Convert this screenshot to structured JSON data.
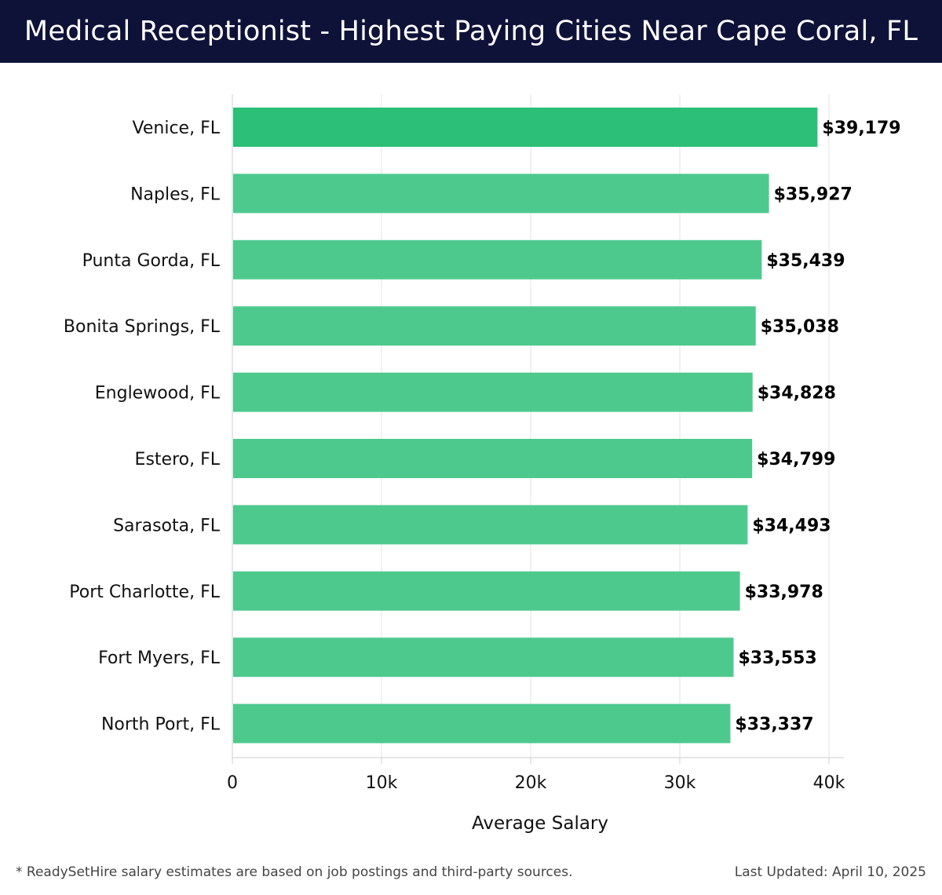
{
  "header": {
    "title": "Medical Receptionist - Highest Paying Cities Near Cape Coral, FL"
  },
  "footer": {
    "note": "* ReadySetHire salary estimates are based on job postings and third-party sources.",
    "updated": "Last Updated: April 10, 2025"
  },
  "colors": {
    "header_bg": "#0f1238",
    "top_bar": "#2bbf78",
    "bar": "#4ec98e",
    "grid": "#e3e3e3",
    "axis": "#cccccc",
    "text": "#111111"
  },
  "chart_data": {
    "type": "bar",
    "orientation": "horizontal",
    "categories": [
      "Venice, FL",
      "Naples, FL",
      "Punta Gorda, FL",
      "Bonita Springs, FL",
      "Englewood, FL",
      "Estero, FL",
      "Sarasota, FL",
      "Port Charlotte, FL",
      "Fort Myers, FL",
      "North Port, FL"
    ],
    "values": [
      39179,
      35927,
      35439,
      35038,
      34828,
      34799,
      34493,
      33978,
      33553,
      33337
    ],
    "value_labels": [
      "$39,179",
      "$35,927",
      "$35,439",
      "$35,038",
      "$34,828",
      "$34,799",
      "$34,493",
      "$33,978",
      "$33,553",
      "$33,337"
    ],
    "xlabel": "Average Salary",
    "ylabel": "",
    "xlim": [
      0,
      41000
    ],
    "x_ticks": [
      0,
      10000,
      20000,
      30000,
      40000
    ],
    "x_tick_labels": [
      "0",
      "10k",
      "20k",
      "30k",
      "40k"
    ],
    "grid": true,
    "legend": "none"
  }
}
